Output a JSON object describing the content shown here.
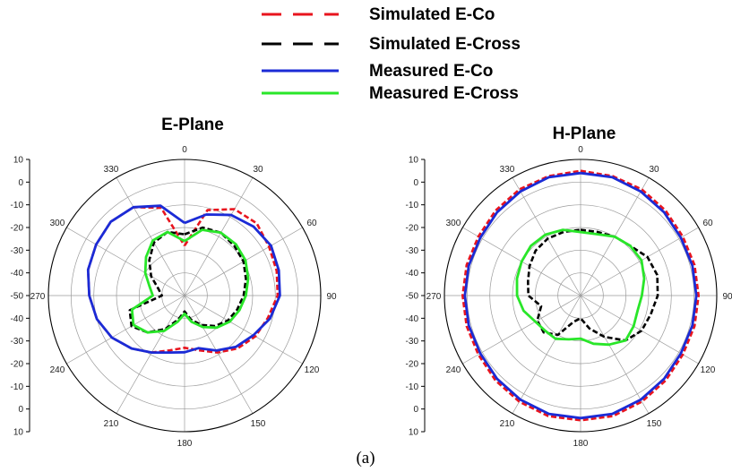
{
  "legend": [
    {
      "label": "Simulated E-Co",
      "color": "#e8141e",
      "dash": "dashed"
    },
    {
      "label": "Simulated E-Cross",
      "color": "#000000",
      "dash": "dashed"
    },
    {
      "label": "Measured E-Co",
      "color": "#1b2bd6",
      "dash": "solid"
    },
    {
      "label": "Measured E-Cross",
      "color": "#29e629",
      "dash": "solid"
    }
  ],
  "caption": "(a)",
  "chart_data": [
    {
      "type": "polar-line",
      "title": "E-Plane",
      "r_range": [
        -50,
        10
      ],
      "r_ticks": [
        10,
        0,
        -10,
        -20,
        -30,
        -40,
        -50,
        -40,
        -30,
        -20,
        -10,
        0,
        10
      ],
      "angle_ticks": [
        0,
        30,
        60,
        90,
        120,
        150,
        180,
        210,
        240,
        270,
        300,
        330
      ],
      "series": [
        {
          "name": "Simulated E-Co",
          "angles": [
            0,
            15,
            30,
            45,
            60,
            75,
            90,
            105,
            120,
            135,
            150,
            165,
            180,
            195,
            210,
            225,
            240,
            255,
            270,
            285,
            300,
            315,
            330,
            345
          ],
          "values": [
            -28,
            -11,
            -6,
            -5,
            -7,
            -8,
            -9,
            -12,
            -14,
            -17,
            -21,
            -25,
            -27,
            -25,
            -21,
            -17,
            -13,
            -10,
            -8,
            -6,
            -5,
            -4,
            -5,
            -10
          ]
        },
        {
          "name": "Measured E-Co",
          "angles": [
            0,
            15,
            30,
            45,
            60,
            75,
            90,
            105,
            120,
            135,
            150,
            165,
            180,
            195,
            210,
            225,
            240,
            255,
            270,
            285,
            300,
            315,
            330,
            345
          ],
          "values": [
            -18,
            -13,
            -9,
            -7,
            -6,
            -7,
            -8,
            -11,
            -15,
            -18,
            -22,
            -26,
            -25,
            -24,
            -21,
            -17,
            -13,
            -10,
            -8,
            -6,
            -5,
            -4,
            -5,
            -9
          ]
        },
        {
          "name": "Simulated E-Cross",
          "angles": [
            0,
            15,
            30,
            45,
            60,
            75,
            90,
            105,
            120,
            135,
            150,
            165,
            180,
            195,
            210,
            225,
            240,
            255,
            270,
            285,
            300,
            315,
            330,
            345
          ],
          "values": [
            -23,
            -19,
            -18,
            -19,
            -20,
            -22,
            -24,
            -26,
            -28,
            -31,
            -35,
            -39,
            -43,
            -39,
            -33,
            -27,
            -23,
            -25,
            -40,
            -38,
            -33,
            -28,
            -23,
            -21
          ]
        },
        {
          "name": "Measured E-Cross",
          "angles": [
            0,
            15,
            30,
            45,
            60,
            75,
            90,
            105,
            120,
            135,
            150,
            165,
            180,
            195,
            210,
            225,
            240,
            255,
            270,
            285,
            300,
            315,
            330,
            345
          ],
          "values": [
            -26,
            -20,
            -18,
            -18,
            -19,
            -21,
            -23,
            -25,
            -27,
            -30,
            -34,
            -38,
            -42,
            -38,
            -32,
            -27,
            -24,
            -26,
            -36,
            -34,
            -30,
            -26,
            -22,
            -21
          ]
        }
      ]
    },
    {
      "type": "polar-line",
      "title": "H-Plane",
      "r_range": [
        -50,
        10
      ],
      "r_ticks": [
        10,
        0,
        -10,
        -20,
        -30,
        -40,
        -50,
        -40,
        -30,
        -20,
        -10,
        0,
        10
      ],
      "angle_ticks": [
        0,
        30,
        60,
        90,
        120,
        150,
        180,
        210,
        240,
        270,
        300,
        330
      ],
      "series": [
        {
          "name": "Simulated E-Co",
          "angles": [
            0,
            15,
            30,
            45,
            60,
            75,
            90,
            105,
            120,
            135,
            150,
            165,
            180,
            195,
            210,
            225,
            240,
            255,
            270,
            285,
            300,
            315,
            330,
            345
          ],
          "values": [
            5,
            4.5,
            4,
            3,
            2,
            2,
            2,
            2,
            2,
            3,
            4,
            5,
            5,
            5,
            4,
            3,
            2,
            2,
            2,
            2,
            2,
            3,
            4,
            4.5
          ]
        },
        {
          "name": "Measured E-Co",
          "angles": [
            0,
            15,
            30,
            45,
            60,
            75,
            90,
            105,
            120,
            135,
            150,
            165,
            180,
            195,
            210,
            225,
            240,
            255,
            270,
            285,
            300,
            315,
            330,
            345
          ],
          "values": [
            4,
            4,
            3,
            2,
            1,
            1,
            1,
            1,
            1,
            2,
            3,
            4,
            4,
            4,
            3,
            2,
            1,
            1,
            1,
            1,
            1,
            2,
            3,
            4
          ]
        },
        {
          "name": "Simulated E-Cross",
          "angles": [
            0,
            15,
            30,
            45,
            60,
            75,
            90,
            105,
            120,
            135,
            150,
            165,
            180,
            195,
            210,
            225,
            240,
            255,
            270,
            285,
            300,
            315,
            330,
            345
          ],
          "values": [
            -21,
            -21,
            -20,
            -19,
            -16,
            -15,
            -16,
            -18,
            -19,
            -22,
            -29,
            -35,
            -40,
            -38,
            -30,
            -27,
            -28,
            -32,
            -27,
            -26,
            -24,
            -22,
            -21,
            -21
          ]
        },
        {
          "name": "Measured E-Cross",
          "angles": [
            0,
            15,
            30,
            45,
            60,
            75,
            90,
            105,
            120,
            135,
            150,
            165,
            180,
            195,
            210,
            225,
            240,
            255,
            270,
            285,
            300,
            315,
            330,
            345
          ],
          "values": [
            -22,
            -22,
            -20,
            -19,
            -19,
            -21,
            -23,
            -24,
            -23,
            -22,
            -25,
            -28,
            -31,
            -30,
            -28,
            -28,
            -27,
            -24,
            -22,
            -21,
            -20,
            -19,
            -19,
            -20
          ]
        }
      ]
    }
  ]
}
